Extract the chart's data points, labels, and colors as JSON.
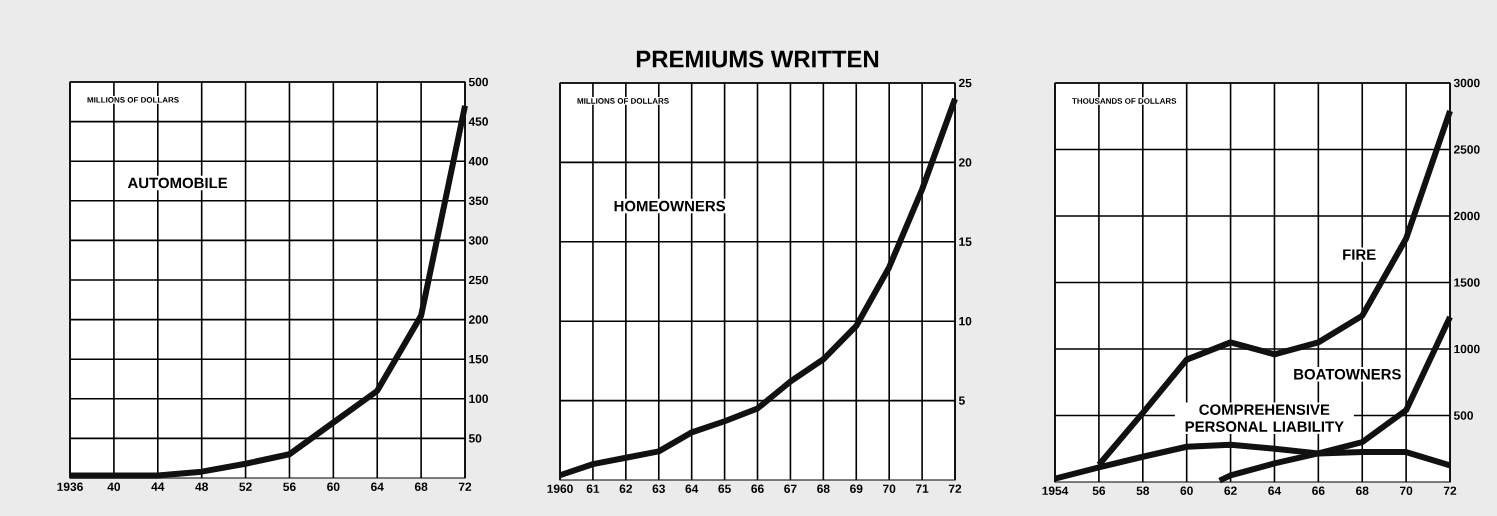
{
  "chart_data": [
    {
      "type": "line",
      "ylabel": "MILLIONS OF DOLLARS",
      "grid": true,
      "xlim": [
        1936,
        1972
      ],
      "ylim": [
        0,
        500
      ],
      "xticks": [
        1936,
        {
          "value": 1940,
          "label": "40"
        },
        {
          "value": 1944,
          "label": "44"
        },
        {
          "value": 1948,
          "label": "48"
        },
        {
          "value": 1952,
          "label": "52"
        },
        {
          "value": 1956,
          "label": "56"
        },
        {
          "value": 1960,
          "label": "60"
        },
        {
          "value": 1964,
          "label": "64"
        },
        {
          "value": 1968,
          "label": "68"
        },
        {
          "value": 1972,
          "label": "72"
        }
      ],
      "yticks": [
        50,
        100,
        150,
        200,
        250,
        300,
        350,
        400,
        450,
        500
      ],
      "series": [
        {
          "name": "AUTOMOBILE",
          "color": "#111111",
          "x": [
            1936,
            1940,
            1944,
            1948,
            1952,
            1956,
            1960,
            1964,
            1968,
            1972
          ],
          "values": [
            3,
            3,
            3,
            8,
            18,
            30,
            70,
            110,
            205,
            470
          ]
        }
      ]
    },
    {
      "type": "line",
      "title": "PREMIUMS WRITTEN",
      "ylabel": "MILLIONS OF DOLLARS",
      "grid": true,
      "xlim": [
        1960,
        1972
      ],
      "ylim": [
        0,
        25
      ],
      "xticks": [
        1960,
        {
          "value": 1961,
          "label": "61"
        },
        {
          "value": 1962,
          "label": "62"
        },
        {
          "value": 1963,
          "label": "63"
        },
        {
          "value": 1964,
          "label": "64"
        },
        {
          "value": 1965,
          "label": "65"
        },
        {
          "value": 1966,
          "label": "66"
        },
        {
          "value": 1967,
          "label": "67"
        },
        {
          "value": 1968,
          "label": "68"
        },
        {
          "value": 1969,
          "label": "69"
        },
        {
          "value": 1970,
          "label": "70"
        },
        {
          "value": 1971,
          "label": "71"
        },
        {
          "value": 1972,
          "label": "72"
        }
      ],
      "yticks": [
        5,
        10,
        15,
        20,
        25
      ],
      "series": [
        {
          "name": "HOMEOWNERS",
          "color": "#111111",
          "x": [
            1960,
            1961,
            1962,
            1963,
            1964,
            1965,
            1966,
            1967,
            1968,
            1969,
            1970,
            1971,
            1972
          ],
          "values": [
            0.3,
            1.0,
            1.4,
            1.8,
            3.0,
            3.7,
            4.5,
            6.2,
            7.6,
            9.7,
            13.4,
            18.3,
            24.0
          ]
        }
      ]
    },
    {
      "type": "line",
      "ylabel": "THOUSANDS OF DOLLARS",
      "grid": true,
      "xlim": [
        1954,
        1972
      ],
      "ylim": [
        0,
        3000
      ],
      "xticks": [
        1954,
        {
          "value": 1956,
          "label": "56"
        },
        {
          "value": 1958,
          "label": "58"
        },
        {
          "value": 1960,
          "label": "60"
        },
        {
          "value": 1962,
          "label": "62"
        },
        {
          "value": 1964,
          "label": "64"
        },
        {
          "value": 1966,
          "label": "66"
        },
        {
          "value": 1968,
          "label": "68"
        },
        {
          "value": 1970,
          "label": "70"
        },
        {
          "value": 1972,
          "label": "72"
        }
      ],
      "yticks": [
        500,
        1000,
        1500,
        2000,
        2500,
        3000
      ],
      "series": [
        {
          "name": "FIRE",
          "color": "#111111",
          "x": [
            1956,
            1958,
            1960,
            1962,
            1964,
            1966,
            1968,
            1970,
            1972
          ],
          "values": [
            130,
            520,
            920,
            1050,
            960,
            1050,
            1250,
            1830,
            2790
          ]
        },
        {
          "name": "BOATOWNERS",
          "color": "#111111",
          "x": [
            1961.5,
            1962,
            1964,
            1966,
            1968,
            1970,
            1972
          ],
          "values": [
            10,
            50,
            140,
            215,
            300,
            540,
            1240
          ]
        },
        {
          "name": "COMPREHENSIVE PERSONAL LIABILITY",
          "color": "#111111",
          "x": [
            1954,
            1956,
            1958,
            1960,
            1962,
            1964,
            1966,
            1968,
            1970,
            1972
          ],
          "values": [
            25,
            110,
            190,
            265,
            280,
            250,
            215,
            225,
            225,
            125
          ]
        }
      ]
    }
  ]
}
